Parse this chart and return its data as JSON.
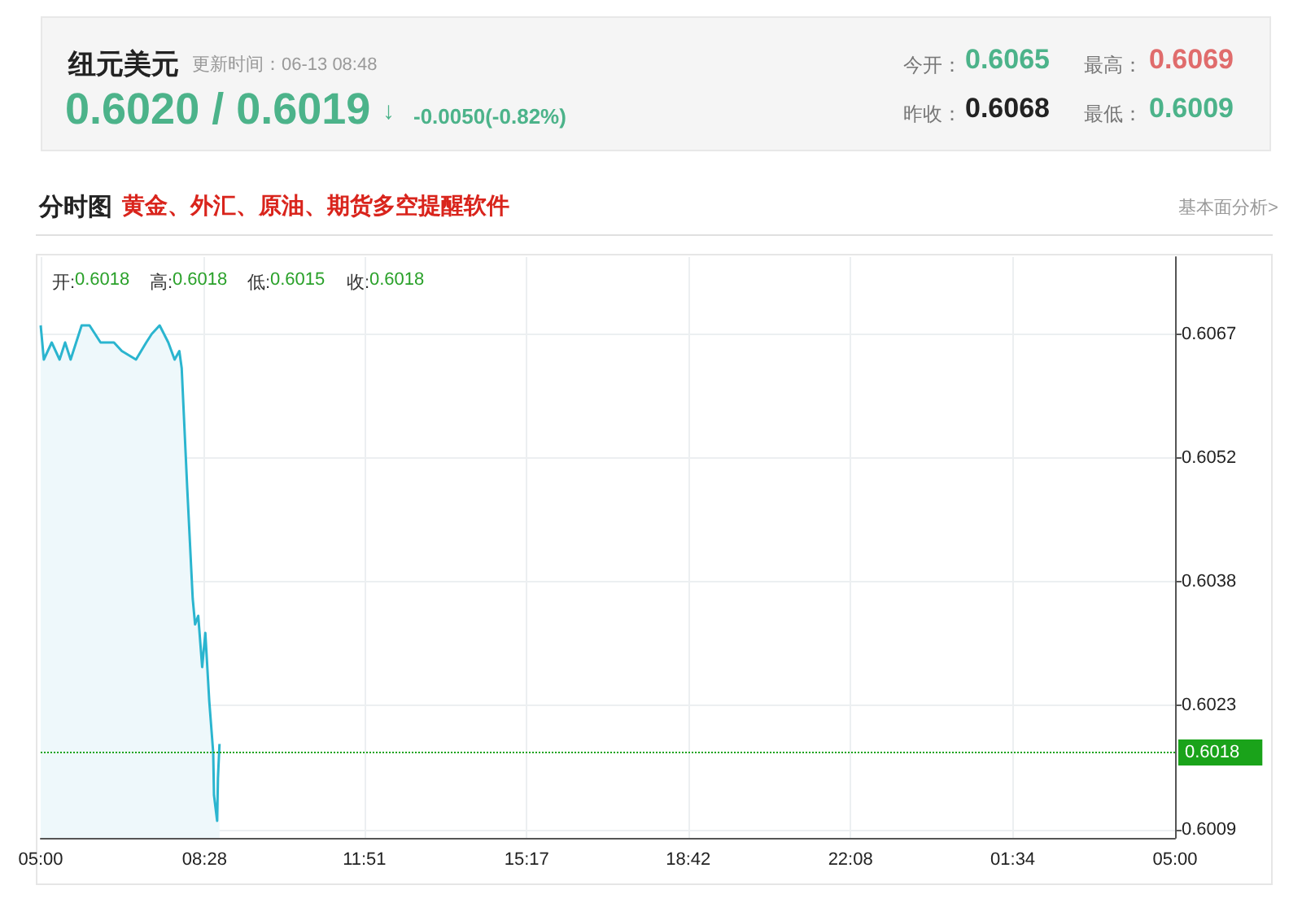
{
  "chart_data": {
    "type": "area",
    "title": "纽元美元",
    "subtitle": "分时图",
    "annotations": [
      "更新时间：06-13 08:48",
      "0.6020 / 0.6019",
      "↓",
      "-0.0050(-0.82%)",
      "今开：",
      "0.6065",
      "最高：",
      "0.6069",
      "昨收：",
      "0.6068",
      "最低：",
      "0.6009",
      "黄金、外汇、原油、期货多空提醒软件",
      "基本面分析>",
      "开:",
      "0.6018",
      "高:",
      "0.6018",
      "低:",
      "0.6015",
      "收:",
      "0.6018"
    ],
    "series": [
      {
        "color": "#2bb5cf",
        "x": [
          "--06-13T05:00",
          "--06-13T05:04",
          "--06-13T05:14",
          "--06-13T05:24",
          "--06-13T05:31",
          "--06-13T05:38",
          "--06-13T05:52",
          "--06-13T06:02",
          "--06-13T06:16",
          "--06-13T06:33",
          "--06-13T06:43",
          "--06-13T07:01",
          "--06-13T07:14",
          "--06-13T07:21",
          "--06-13T07:31",
          "--06-13T07:42",
          "--06-13T07:50",
          "--06-13T07:56",
          "--06-13T07:59",
          "--06-13T08:06",
          "--06-13T08:13",
          "--06-13T08:16",
          "--06-13T08:20",
          "--06-13T08:25",
          "--06-13T08:29",
          "--06-13T08:34",
          "--06-13T08:39",
          "--06-13T08:40",
          "--06-13T08:44",
          "--06-13T08:45",
          "--06-13T08:47"
        ],
        "values": [
          0.6068,
          0.6064,
          0.6066,
          0.6064,
          0.6066,
          0.6064,
          0.6068,
          0.6068,
          0.6066,
          0.6066,
          0.6065,
          0.6064,
          0.6066,
          0.6067,
          0.6068,
          0.6066,
          0.6064,
          0.6065,
          0.6063,
          0.6049,
          0.6036,
          0.6033,
          0.6034,
          0.6028,
          0.6032,
          0.6024,
          0.6018,
          0.6013,
          0.601,
          0.6015,
          0.6019
        ]
      }
    ],
    "xlim": [
      "--06-13T05:00",
      "--06-14T05:00"
    ],
    "xticks": [
      {
        "value": "--06-13T05:00",
        "label": "05:00"
      },
      {
        "value": "--06-13T08:28",
        "label": "08:28"
      },
      {
        "value": "--06-13T11:51",
        "label": "11:51"
      },
      {
        "value": "--06-13T15:17",
        "label": "15:17"
      },
      {
        "value": "--06-13T18:42",
        "label": "18:42"
      },
      {
        "value": "--06-13T22:08",
        "label": "22:08"
      },
      {
        "value": "--06-14T01:34",
        "label": "01:34"
      },
      {
        "value": "--06-14T05:00",
        "label": "05:00"
      }
    ],
    "ylim": [
      0.6008,
      0.6076
    ],
    "yticks": [
      {
        "value": 0.6009,
        "label": "0.6009"
      },
      {
        "value": 0.60235,
        "label": "0.6023"
      },
      {
        "value": 0.6038,
        "label": "0.6038"
      },
      {
        "value": 0.60525,
        "label": "0.6052"
      },
      {
        "value": 0.6067,
        "label": "0.6067"
      }
    ],
    "ref_lines": [
      {
        "axis": "y",
        "value": 0.6018,
        "label": "0.6018",
        "color": "#1aa31a",
        "line_style": "dotted"
      }
    ],
    "grid": true,
    "marker": "none",
    "line_style": "solid"
  }
}
